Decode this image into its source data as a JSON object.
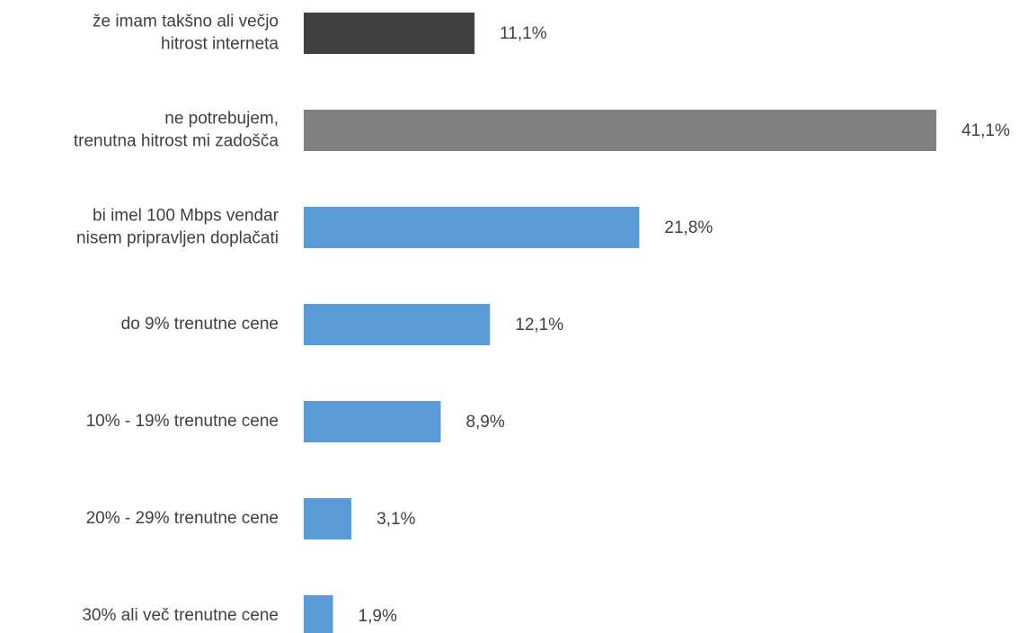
{
  "chart_data": {
    "type": "bar",
    "orientation": "horizontal",
    "categories": [
      [
        "že imam takšno ali večjo",
        "hitrost interneta"
      ],
      [
        "ne potrebujem,",
        "trenutna hitrost mi zadošča"
      ],
      [
        "bi imel 100 Mbps vendar",
        "nisem pripravljen doplačati"
      ],
      [
        "do 9% trenutne cene"
      ],
      [
        "10% - 19% trenutne cene"
      ],
      [
        "20% - 29% trenutne cene"
      ],
      [
        "30% ali več trenutne cene"
      ]
    ],
    "values": [
      11.1,
      41.1,
      21.8,
      12.1,
      8.9,
      3.1,
      1.9
    ],
    "value_labels": [
      "11,1%",
      "41,1%",
      "21,8%",
      "12,1%",
      "8,9%",
      "3,1%",
      "1,9%"
    ],
    "colors": [
      "#404040",
      "#808080",
      "#5b9bd5",
      "#5b9bd5",
      "#5b9bd5",
      "#5b9bd5",
      "#5b9bd5"
    ]
  }
}
